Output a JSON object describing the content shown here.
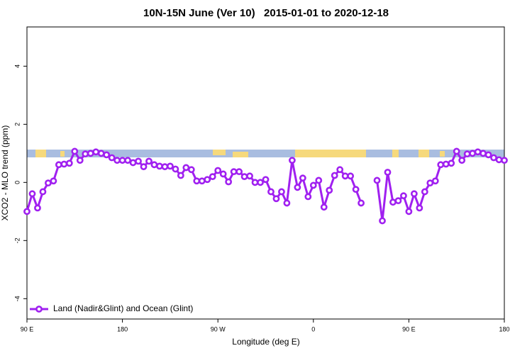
{
  "chart_data": {
    "type": "line",
    "title": "10N-15N June (Ver 10)   2015-01-01 to 2020-12-18",
    "x_label": "Longitude (deg E)",
    "y_label": "XCO2 - MLO trend (ppm)",
    "x": [
      90,
      95,
      100,
      105,
      110,
      115,
      120,
      125,
      130,
      135,
      140,
      145,
      150,
      155,
      160,
      165,
      170,
      175,
      180,
      185,
      190,
      195,
      200,
      205,
      210,
      215,
      220,
      225,
      230,
      235,
      240,
      245,
      250,
      255,
      260,
      265,
      270,
      275,
      280,
      285,
      290,
      295,
      300,
      305,
      310,
      315,
      320,
      325,
      330,
      335,
      340,
      345,
      350,
      355,
      360,
      365,
      370,
      375,
      380,
      385,
      390,
      395,
      400,
      405,
      410,
      415,
      420,
      425,
      430,
      435,
      440,
      445,
      450,
      455,
      460,
      465,
      470,
      475,
      480,
      485,
      490,
      495,
      500,
      505,
      510,
      515,
      520,
      525,
      530,
      535,
      540
    ],
    "series": [
      {
        "name": "Land (Nadir&Glint) and Ocean (Glint)",
        "color": "#a020f0",
        "values": [
          -1.0,
          -0.39,
          -0.88,
          -0.32,
          -0.02,
          0.05,
          0.61,
          0.63,
          0.66,
          1.07,
          0.76,
          0.98,
          1.0,
          1.05,
          1.0,
          0.95,
          0.85,
          0.76,
          0.76,
          0.76,
          0.68,
          0.73,
          0.54,
          0.73,
          0.61,
          0.56,
          0.54,
          0.56,
          0.46,
          0.24,
          0.51,
          0.44,
          0.05,
          0.05,
          0.1,
          0.2,
          0.41,
          0.29,
          0.02,
          0.37,
          0.37,
          0.2,
          0.22,
          0.0,
          0.0,
          0.1,
          -0.32,
          -0.56,
          -0.32,
          -0.71,
          0.76,
          -0.17,
          0.15,
          -0.49,
          -0.1,
          0.07,
          -0.85,
          -0.27,
          0.24,
          0.44,
          0.22,
          0.22,
          -0.24,
          -0.71,
          null,
          null,
          0.07,
          -1.32,
          0.35,
          -0.68,
          -0.63,
          -0.46,
          -1.0,
          -0.39,
          -0.88,
          -0.32,
          -0.02,
          0.05,
          0.61,
          0.63,
          0.66,
          1.07,
          0.76,
          0.98,
          1.0,
          1.05,
          1.0,
          0.95,
          0.85,
          0.78,
          0.76
        ]
      }
    ],
    "xlim": [
      90,
      540
    ],
    "xticks": [
      {
        "value": 90,
        "label": "90 E"
      },
      180,
      {
        "value": 270,
        "label": "90 W"
      },
      {
        "value": 360,
        "label": "0"
      },
      {
        "value": 450,
        "label": "90 E"
      },
      {
        "value": 540,
        "label": "180"
      }
    ],
    "ylim": [
      -4.7,
      5.35
    ],
    "yticks": [
      -4,
      -2,
      0,
      2,
      4
    ],
    "legend": "bottom-left"
  }
}
